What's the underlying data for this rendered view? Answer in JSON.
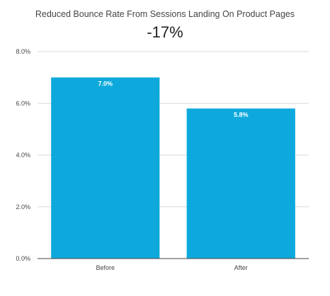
{
  "chart_data": {
    "type": "bar",
    "title": "Reduced Bounce Rate From Sessions Landing On Product Pages",
    "subtitle": "-17%",
    "xlabel": "",
    "ylabel": "",
    "categories": [
      "Before",
      "After"
    ],
    "values": [
      7.0,
      5.8
    ],
    "data_labels": [
      "7.0%",
      "5.8%"
    ],
    "ylim": [
      0,
      8
    ],
    "yticks": [
      0,
      2,
      4,
      6,
      8
    ],
    "ytick_labels": [
      "0.0%",
      "2.0%",
      "4.0%",
      "6.0%",
      "8.0%"
    ],
    "grid": true,
    "legend": "none",
    "bar_color": "#0ea9dc",
    "grid_color": "#d9d9d9",
    "axis_color": "#444444"
  }
}
